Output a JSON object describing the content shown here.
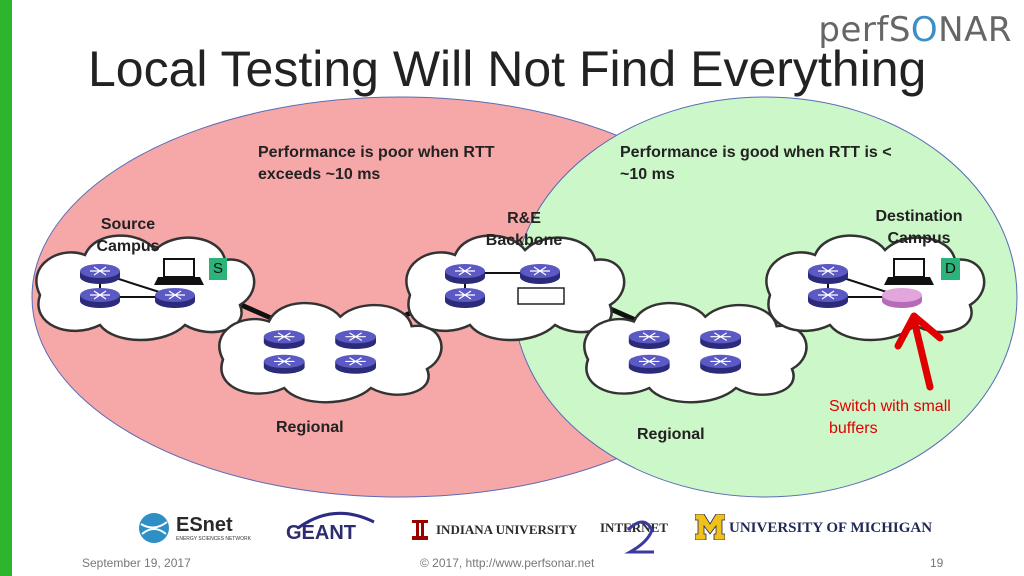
{
  "slide": {
    "title": "Local Testing Will Not Find Everything",
    "logo": {
      "part1": "perfS",
      "part2": "O",
      "part3": "NAR"
    }
  },
  "diagram": {
    "left_region_text": "Performance is poor when RTT exceeds ~10 ms",
    "right_region_text": "Performance is good when RTT is < ~10 ms",
    "source_label": "Source Campus",
    "backbone_label": "R&E Backbone",
    "destination_label": "Destination Campus",
    "regional_left_label": "Regional",
    "regional_right_label": "Regional",
    "source_tag": "S",
    "destination_tag": "D",
    "switch_note": "Switch with small buffers",
    "colors": {
      "left_region": "#f6a8a8",
      "right_region": "#ccf7c8",
      "arrow": "#e00000",
      "router": "#4a49a8"
    }
  },
  "logos": {
    "esnet": "ESnet",
    "esnet_sub": "ENERGY SCIENCES NETWORK",
    "geant": "GÉANT",
    "indiana": "INDIANA UNIVERSITY",
    "internet2": "INTERNET",
    "michigan": "UNIVERSITY OF MICHIGAN"
  },
  "footer": {
    "date": "September 19, 2017",
    "copyright": "© 2017, http://www.perfsonar.net",
    "page": "19"
  }
}
